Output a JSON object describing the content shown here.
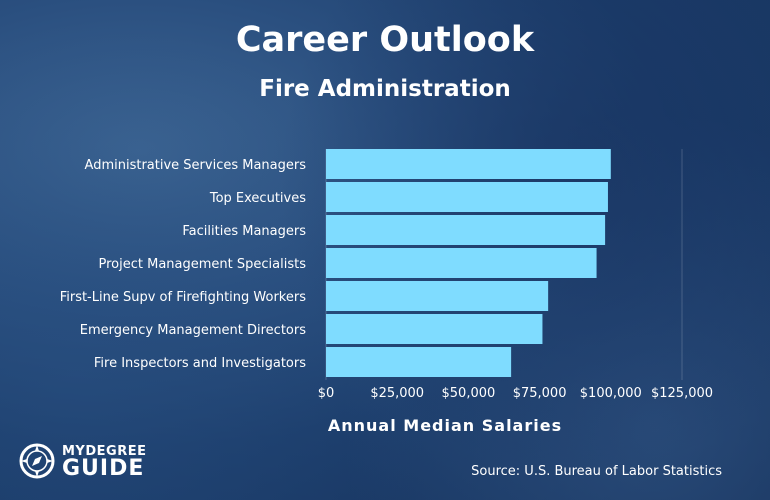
{
  "chart_data": {
    "type": "bar",
    "orientation": "horizontal",
    "title": "Career Outlook",
    "subtitle": "Fire Administration",
    "categories": [
      "Administrative Services Managers",
      "Top Executives",
      "Facilities Managers",
      "Project Management Specialists",
      "First-Line Supv of Firefighting Workers",
      "Emergency Management Directors",
      "Fire Inspectors and Investigators"
    ],
    "values": [
      100000,
      99000,
      98000,
      95000,
      78000,
      76000,
      65000
    ],
    "xlabel": "Annual Median Salaries",
    "xlim": [
      0,
      125000
    ],
    "xticks": [
      "$0",
      "$25,000",
      "$50,000",
      "$75,000",
      "$100,000",
      "$125,000"
    ],
    "grid": true,
    "bar_color": "#7fdcff"
  },
  "source": "Source: U.S. Bureau of Labor Statistics",
  "logo": {
    "top": "MYDEGREE",
    "bottom": "GUIDE",
    "icon": "compass-icon"
  }
}
